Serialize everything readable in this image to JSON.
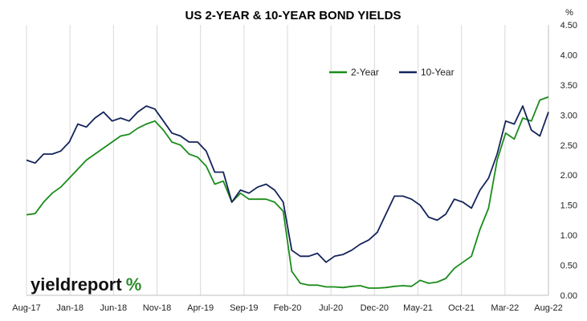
{
  "chart_data": {
    "type": "line",
    "title": "US 2-YEAR & 10-YEAR BOND YIELDS",
    "y_unit": "%",
    "ylim": [
      0,
      4.5
    ],
    "y_ticks": [
      "0.00",
      "0.50",
      "1.00",
      "1.50",
      "2.00",
      "2.50",
      "3.00",
      "3.50",
      "4.00",
      "4.50"
    ],
    "x_ticks": [
      "Aug-17",
      "Jan-18",
      "Jun-18",
      "Nov-18",
      "Apr-19",
      "Sep-19",
      "Feb-20",
      "Jul-20",
      "Dec-20",
      "May-21",
      "Oct-21",
      "Mar-22",
      "Aug-22"
    ],
    "grid": "vertical",
    "legend_position": "top-right",
    "colors": {
      "two_year": "#1a8c1a",
      "ten_year": "#14245a"
    },
    "series": [
      {
        "name": "2-Year",
        "x": [
          "2017-08",
          "2017-09",
          "2017-10",
          "2017-11",
          "2017-12",
          "2018-01",
          "2018-02",
          "2018-03",
          "2018-04",
          "2018-05",
          "2018-06",
          "2018-07",
          "2018-08",
          "2018-09",
          "2018-10",
          "2018-11",
          "2018-12",
          "2019-01",
          "2019-02",
          "2019-03",
          "2019-04",
          "2019-05",
          "2019-06",
          "2019-07",
          "2019-08",
          "2019-09",
          "2019-10",
          "2019-11",
          "2019-12",
          "2020-01",
          "2020-02",
          "2020-03",
          "2020-04",
          "2020-05",
          "2020-06",
          "2020-07",
          "2020-08",
          "2020-09",
          "2020-10",
          "2020-11",
          "2020-12",
          "2021-01",
          "2021-02",
          "2021-03",
          "2021-04",
          "2021-05",
          "2021-06",
          "2021-07",
          "2021-08",
          "2021-09",
          "2021-10",
          "2021-11",
          "2021-12",
          "2022-01",
          "2022-02",
          "2022-03",
          "2022-04",
          "2022-05",
          "2022-06",
          "2022-07",
          "2022-08",
          "2022-09"
        ],
        "values": [
          1.34,
          1.36,
          1.55,
          1.7,
          1.8,
          1.95,
          2.1,
          2.25,
          2.35,
          2.45,
          2.55,
          2.65,
          2.68,
          2.78,
          2.85,
          2.9,
          2.75,
          2.55,
          2.5,
          2.35,
          2.3,
          2.15,
          1.85,
          1.9,
          1.55,
          1.7,
          1.6,
          1.6,
          1.6,
          1.55,
          1.4,
          0.4,
          0.2,
          0.17,
          0.17,
          0.14,
          0.14,
          0.13,
          0.15,
          0.16,
          0.12,
          0.12,
          0.13,
          0.15,
          0.16,
          0.15,
          0.25,
          0.2,
          0.22,
          0.28,
          0.45,
          0.55,
          0.65,
          1.1,
          1.45,
          2.25,
          2.7,
          2.6,
          2.95,
          2.9,
          3.25,
          3.3
        ]
      },
      {
        "name": "10-Year",
        "x": [
          "2017-08",
          "2017-09",
          "2017-10",
          "2017-11",
          "2017-12",
          "2018-01",
          "2018-02",
          "2018-03",
          "2018-04",
          "2018-05",
          "2018-06",
          "2018-07",
          "2018-08",
          "2018-09",
          "2018-10",
          "2018-11",
          "2018-12",
          "2019-01",
          "2019-02",
          "2019-03",
          "2019-04",
          "2019-05",
          "2019-06",
          "2019-07",
          "2019-08",
          "2019-09",
          "2019-10",
          "2019-11",
          "2019-12",
          "2020-01",
          "2020-02",
          "2020-03",
          "2020-04",
          "2020-05",
          "2020-06",
          "2020-07",
          "2020-08",
          "2020-09",
          "2020-10",
          "2020-11",
          "2020-12",
          "2021-01",
          "2021-02",
          "2021-03",
          "2021-04",
          "2021-05",
          "2021-06",
          "2021-07",
          "2021-08",
          "2021-09",
          "2021-10",
          "2021-11",
          "2021-12",
          "2022-01",
          "2022-02",
          "2022-03",
          "2022-04",
          "2022-05",
          "2022-06",
          "2022-07",
          "2022-08",
          "2022-09"
        ],
        "values": [
          2.25,
          2.2,
          2.35,
          2.35,
          2.4,
          2.55,
          2.85,
          2.8,
          2.95,
          3.05,
          2.9,
          2.95,
          2.9,
          3.05,
          3.15,
          3.1,
          2.9,
          2.7,
          2.65,
          2.55,
          2.55,
          2.4,
          2.05,
          2.05,
          1.55,
          1.75,
          1.7,
          1.8,
          1.85,
          1.75,
          1.55,
          0.75,
          0.65,
          0.65,
          0.7,
          0.55,
          0.65,
          0.68,
          0.75,
          0.85,
          0.92,
          1.05,
          1.35,
          1.65,
          1.65,
          1.6,
          1.5,
          1.3,
          1.25,
          1.35,
          1.6,
          1.55,
          1.45,
          1.75,
          1.95,
          2.35,
          2.9,
          2.85,
          3.15,
          2.75,
          2.65,
          3.05
        ]
      }
    ]
  },
  "logo": {
    "main": "yieldreport",
    "symbol": "%"
  }
}
